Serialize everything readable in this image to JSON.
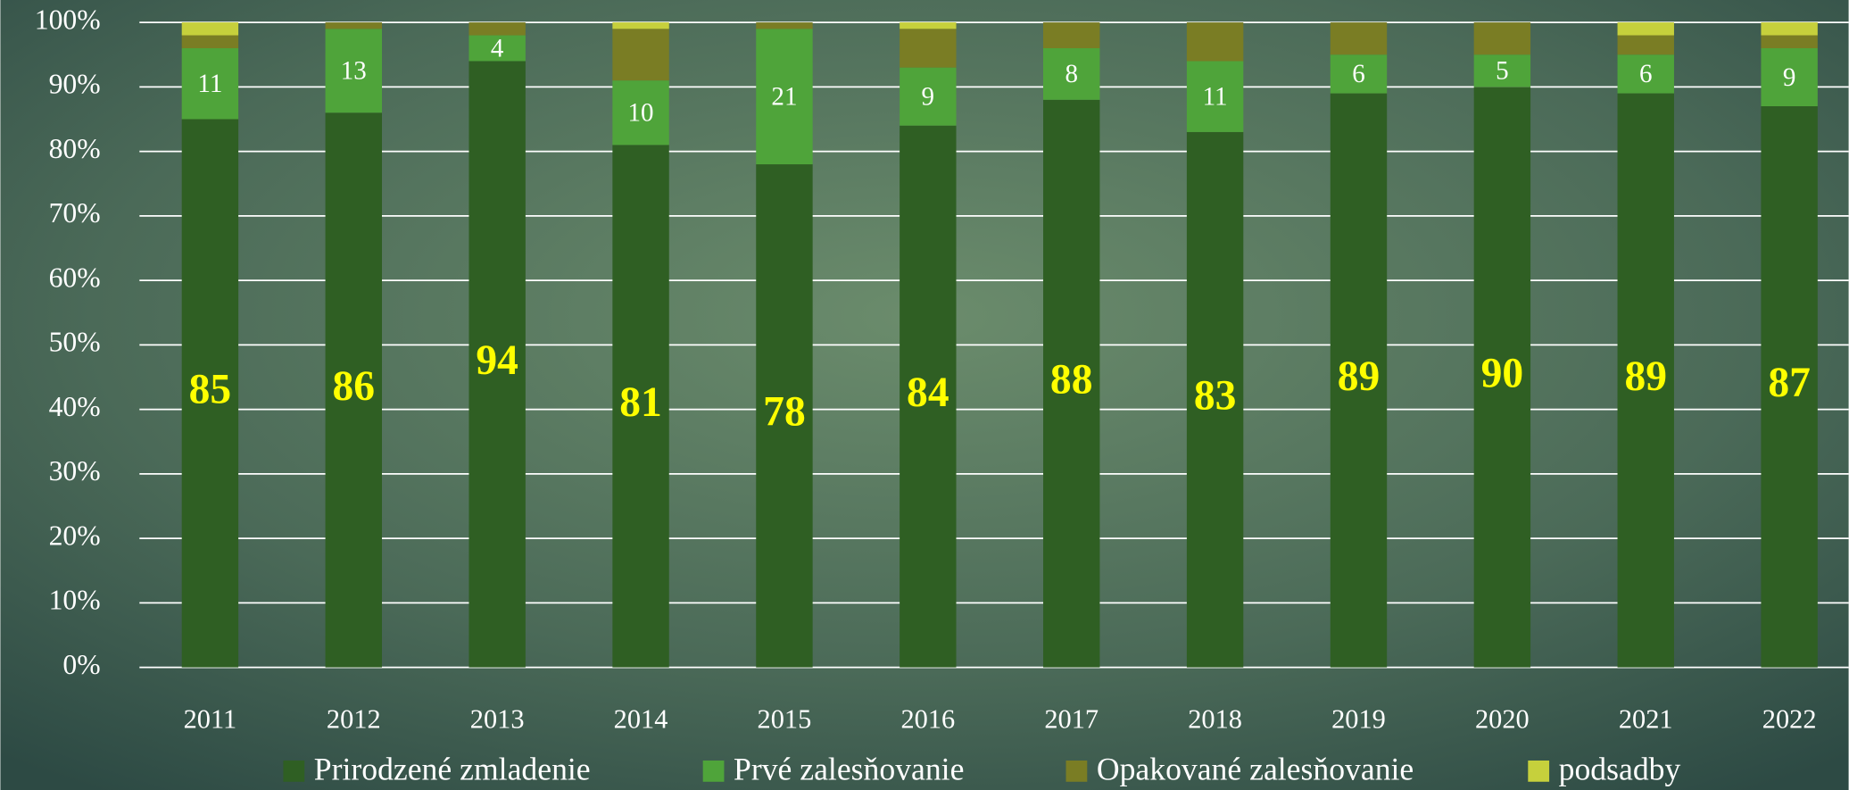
{
  "chart_data": {
    "type": "stacked_bar",
    "categories": [
      "2011",
      "2012",
      "2013",
      "2014",
      "2015",
      "2016",
      "2017",
      "2018",
      "2019",
      "2020",
      "2021",
      "2022"
    ],
    "series": [
      {
        "name": "Prirodzené zmladenie",
        "color": "#2f5f23",
        "label_color": "#ffff00",
        "data_labels": true,
        "values": [
          85,
          86,
          94,
          81,
          78,
          84,
          88,
          83,
          89,
          90,
          89,
          87
        ]
      },
      {
        "name": "Prvé zalesňovanie",
        "color": "#4fa43a",
        "label_color": "#ffffff",
        "data_labels": true,
        "values": [
          11,
          13,
          4,
          10,
          21,
          9,
          8,
          11,
          6,
          5,
          6,
          9
        ]
      },
      {
        "name": "Opakované zalesňovanie",
        "color": "#7a7d24",
        "data_labels": false,
        "values": [
          2,
          1,
          2,
          8,
          1,
          6,
          4,
          6,
          5,
          5,
          3,
          2
        ]
      },
      {
        "name": "podsadby",
        "color": "#c6d03c",
        "data_labels": false,
        "values": [
          2,
          0,
          0,
          1,
          0,
          1,
          0,
          0,
          0,
          0,
          2,
          2
        ]
      }
    ],
    "ylim": [
      0,
      100
    ],
    "yticks": [
      {
        "value": 0,
        "label": "0%"
      },
      {
        "value": 10,
        "label": "10%"
      },
      {
        "value": 20,
        "label": "20%"
      },
      {
        "value": 30,
        "label": "30%"
      },
      {
        "value": 40,
        "label": "40%"
      },
      {
        "value": 50,
        "label": "50%"
      },
      {
        "value": 60,
        "label": "60%"
      },
      {
        "value": 70,
        "label": "70%"
      },
      {
        "value": 80,
        "label": "80%"
      },
      {
        "value": 90,
        "label": "90%"
      },
      {
        "value": 100,
        "label": "100%"
      }
    ],
    "grid": true,
    "legend": "bottom"
  }
}
